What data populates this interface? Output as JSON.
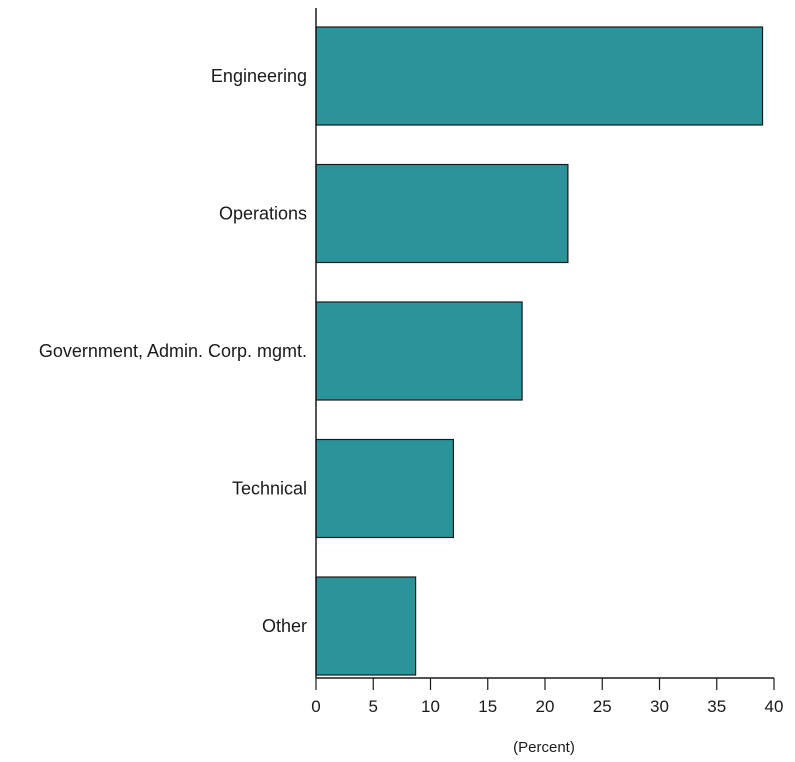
{
  "chart_data": {
    "type": "bar",
    "orientation": "horizontal",
    "categories": [
      "Engineering",
      "Operations",
      "Government, Admin. Corp. mgmt.",
      "Technical",
      "Other"
    ],
    "values": [
      39,
      22,
      18,
      12,
      8.7
    ],
    "title": "",
    "xlabel": "(Percent)",
    "ylabel": "",
    "xlim": [
      0,
      40
    ],
    "xticks": [
      0,
      5,
      10,
      15,
      20,
      25,
      30,
      35,
      40
    ],
    "xtick_labels": [
      "0",
      "5",
      "10",
      "15",
      "20",
      "25",
      "30",
      "35",
      "40"
    ],
    "grid": false,
    "legend": "none",
    "colors": {
      "bar_fill": "#2b939a",
      "bar_stroke": "#1a1a1a",
      "axis": "#1a1a1a"
    }
  }
}
